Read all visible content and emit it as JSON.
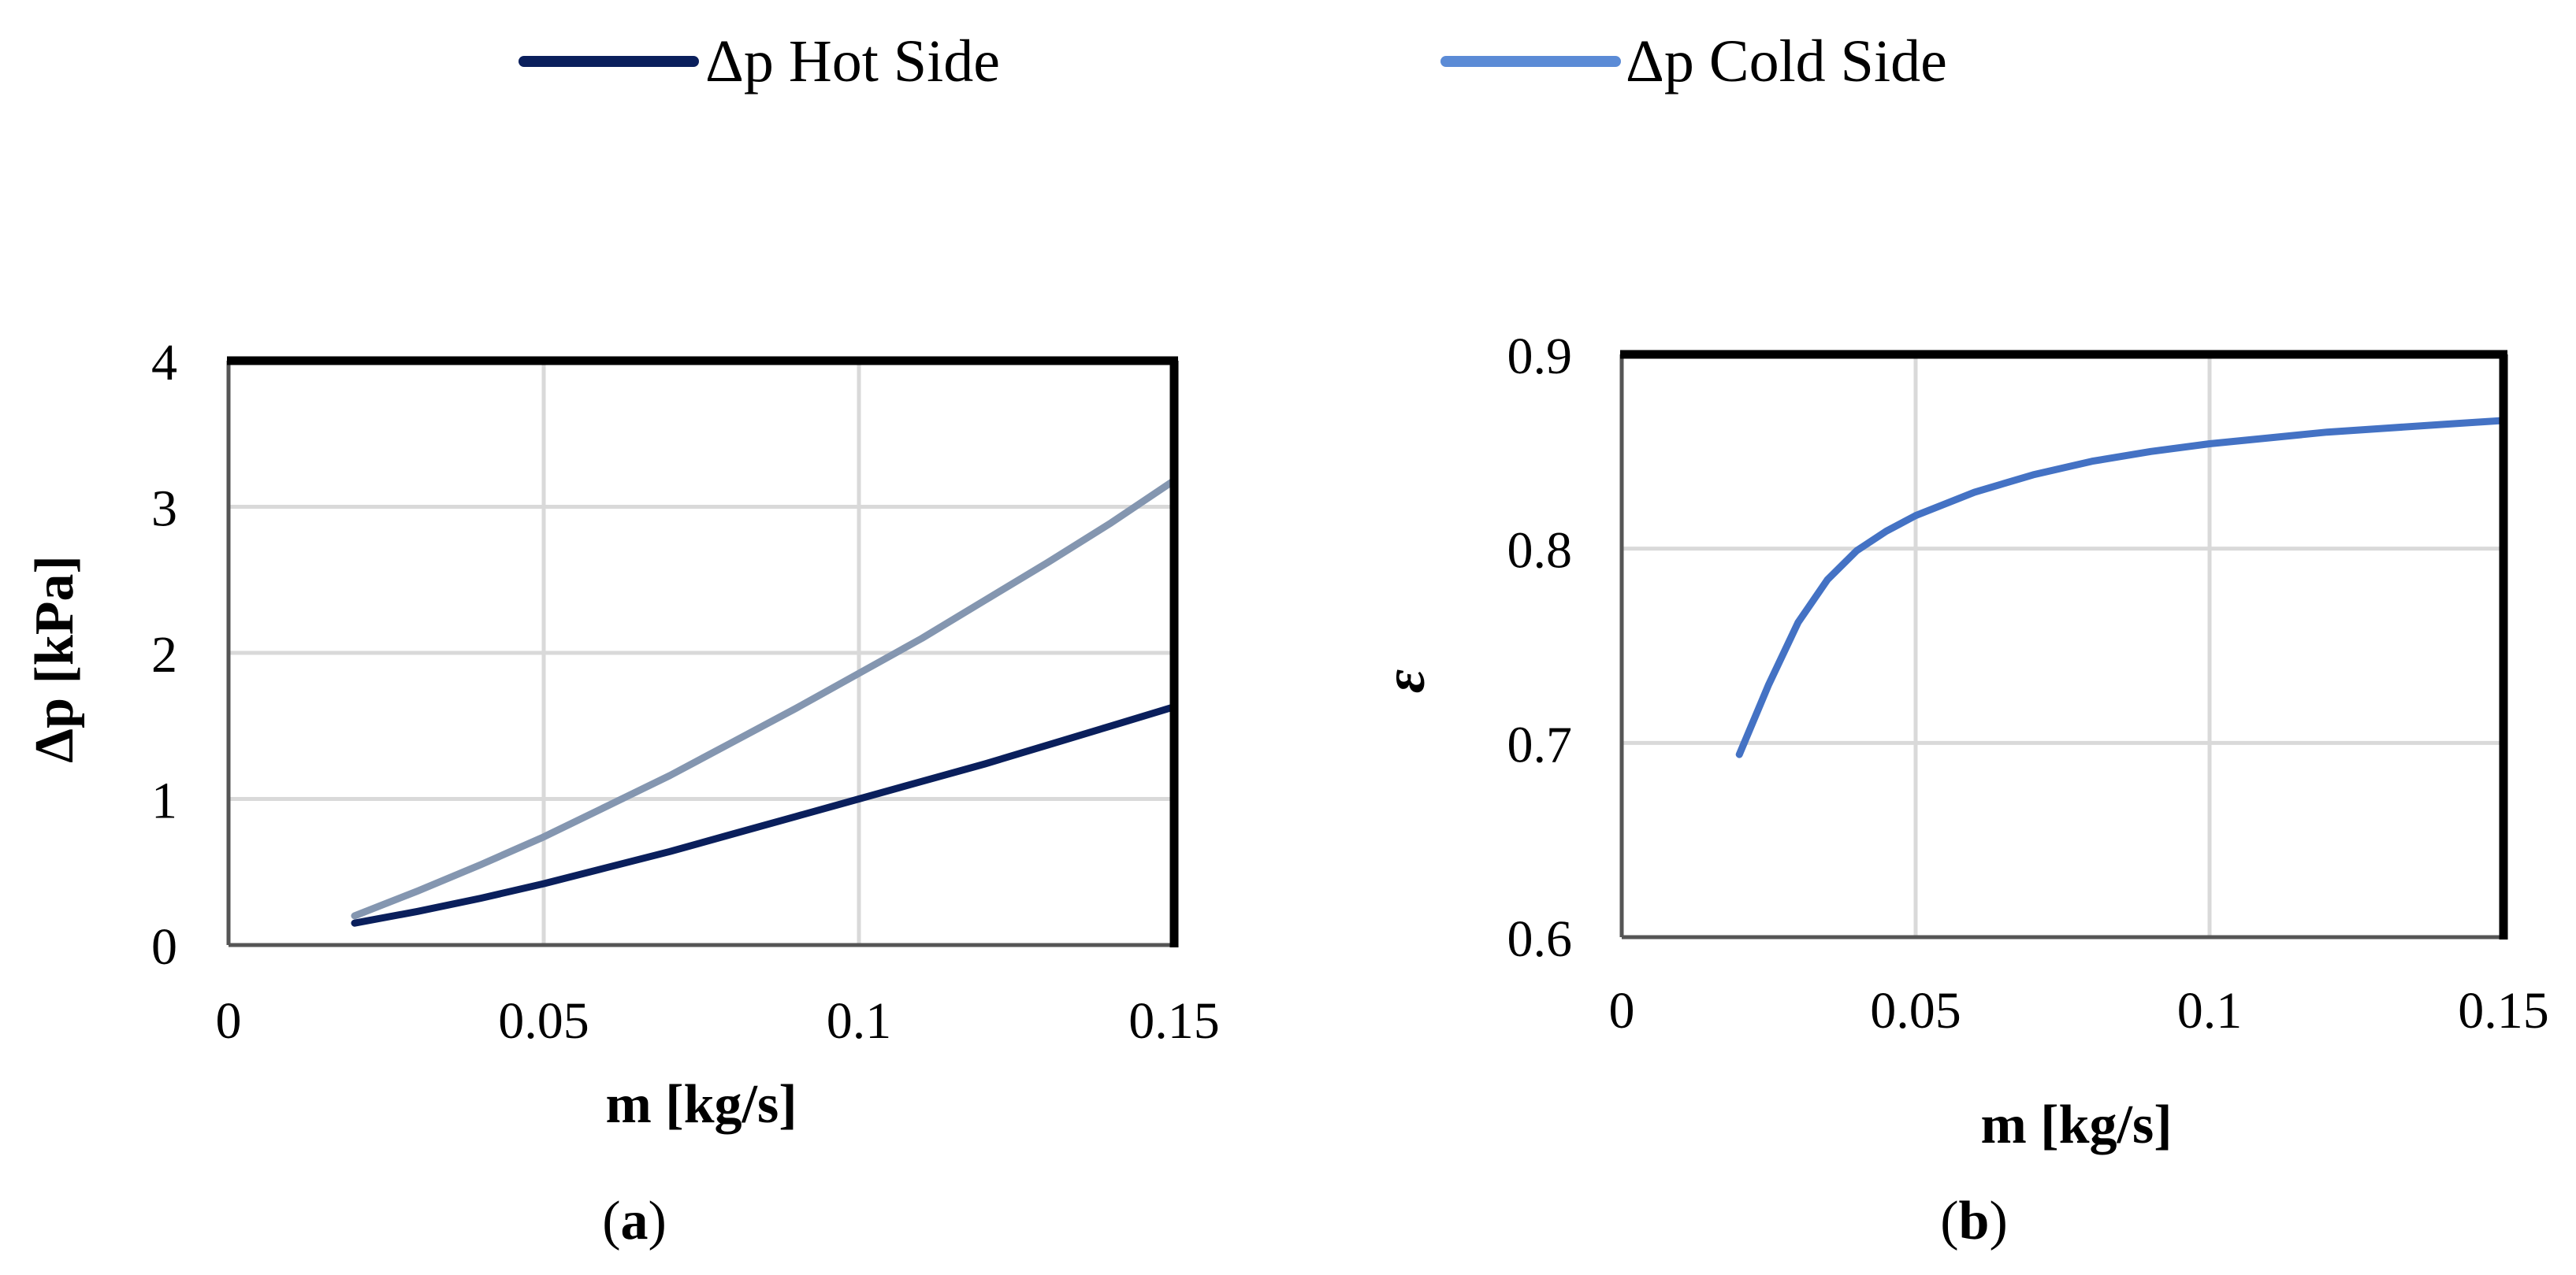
{
  "legend": {
    "entries": [
      {
        "label": "Δp Hot Side",
        "color": "#0a1f5c"
      },
      {
        "label": "Δp Cold Side",
        "color": "#5b8bd6"
      }
    ]
  },
  "colors": {
    "grid": "#d9d9d9",
    "axis": "#000000",
    "hot": "#0a1f5c",
    "cold_plot_a": "#8496b0",
    "effectiveness": "#4472c4"
  },
  "chart_data": [
    {
      "type": "line",
      "panel_label": "a",
      "xlabel": "m [kg/s]",
      "ylabel": "Δp [kPa]",
      "xlim": [
        0,
        0.15
      ],
      "ylim": [
        0,
        4
      ],
      "xticks": [
        0,
        0.05,
        0.1,
        0.15
      ],
      "xtick_labels": [
        "0",
        "0.05",
        "0.1",
        "0.15"
      ],
      "yticks": [
        0,
        1,
        2,
        3,
        4
      ],
      "ytick_labels": [
        "0",
        "1",
        "2",
        "3",
        "4"
      ],
      "grid": true,
      "series": [
        {
          "name": "Δp Hot Side",
          "x": [
            0.02,
            0.03,
            0.04,
            0.05,
            0.06,
            0.07,
            0.08,
            0.09,
            0.1,
            0.11,
            0.12,
            0.13,
            0.14,
            0.15
          ],
          "values": [
            0.15,
            0.23,
            0.32,
            0.42,
            0.53,
            0.64,
            0.76,
            0.88,
            1.0,
            1.12,
            1.24,
            1.37,
            1.5,
            1.63
          ]
        },
        {
          "name": "Δp Cold Side",
          "x": [
            0.02,
            0.03,
            0.04,
            0.05,
            0.06,
            0.07,
            0.08,
            0.09,
            0.1,
            0.11,
            0.12,
            0.13,
            0.14,
            0.15
          ],
          "values": [
            0.2,
            0.37,
            0.55,
            0.74,
            0.95,
            1.16,
            1.39,
            1.62,
            1.86,
            2.1,
            2.36,
            2.62,
            2.89,
            3.18
          ]
        }
      ]
    },
    {
      "type": "line",
      "panel_label": "b",
      "xlabel": "m [kg/s]",
      "ylabel": "ε",
      "xlim": [
        0,
        0.15
      ],
      "ylim": [
        0.6,
        0.9
      ],
      "xticks": [
        0,
        0.05,
        0.1,
        0.15
      ],
      "xtick_labels": [
        "0",
        "0.05",
        "0.1",
        "0.15"
      ],
      "yticks": [
        0.6,
        0.7,
        0.8,
        0.9
      ],
      "ytick_labels": [
        "0.6",
        "0.7",
        "0.8",
        "0.9"
      ],
      "grid": true,
      "series": [
        {
          "name": "ε",
          "x": [
            0.02,
            0.025,
            0.03,
            0.035,
            0.04,
            0.045,
            0.05,
            0.06,
            0.07,
            0.08,
            0.09,
            0.1,
            0.11,
            0.12,
            0.13,
            0.14,
            0.15
          ],
          "values": [
            0.694,
            0.73,
            0.762,
            0.784,
            0.799,
            0.809,
            0.817,
            0.829,
            0.838,
            0.845,
            0.85,
            0.854,
            0.857,
            0.86,
            0.862,
            0.864,
            0.866
          ]
        }
      ]
    }
  ]
}
